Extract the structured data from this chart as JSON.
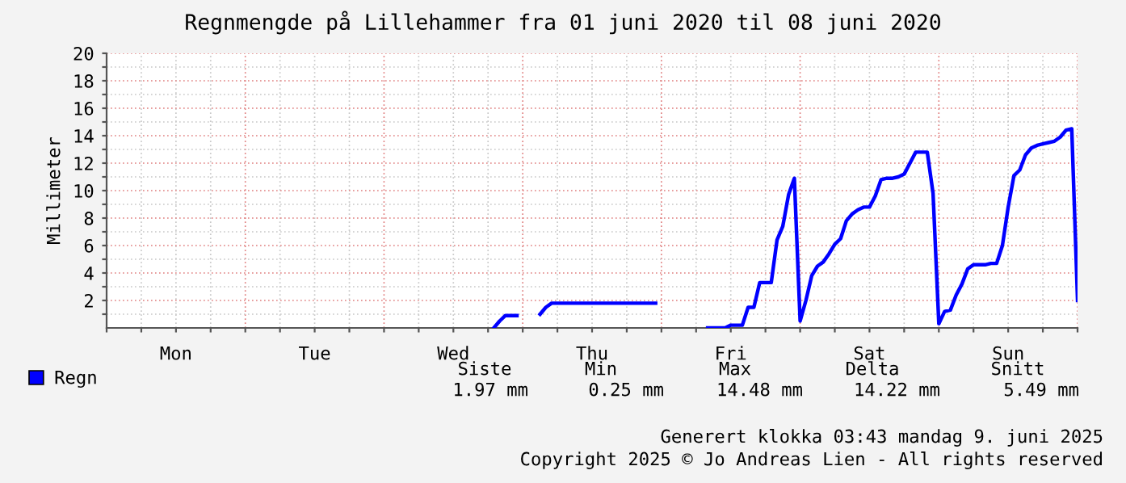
{
  "chart_data": {
    "type": "line",
    "title": "Regnmengde på Lillehammer fra 01 juni 2020 til 08 juni 2020",
    "ylabel": "Millimeter",
    "categories": [
      null,
      null,
      null,
      null,
      null,
      null,
      null,
      null,
      null,
      null,
      null,
      null,
      "Mon",
      null,
      null,
      null,
      null,
      null,
      null,
      null,
      null,
      null,
      null,
      null,
      null,
      null,
      null,
      null,
      null,
      null,
      null,
      null,
      null,
      null,
      null,
      null,
      "Tue",
      null,
      null,
      null,
      null,
      null,
      null,
      null,
      null,
      null,
      null,
      null,
      null,
      null,
      null,
      null,
      null,
      null,
      null,
      null,
      null,
      null,
      null,
      null,
      "Wed",
      null,
      null,
      null,
      null,
      null,
      null,
      null,
      null,
      null,
      null,
      null,
      null,
      null,
      null,
      null,
      null,
      null,
      null,
      null,
      null,
      null,
      null,
      null,
      "Thu",
      null,
      null,
      null,
      null,
      null,
      null,
      null,
      null,
      null,
      null,
      null,
      null,
      null,
      null,
      null,
      null,
      null,
      null,
      null,
      null,
      null,
      null,
      null,
      "Fri",
      null,
      null,
      null,
      null,
      null,
      null,
      null,
      null,
      null,
      null,
      null,
      null,
      null,
      null,
      null,
      null,
      null,
      null,
      null,
      null,
      null,
      null,
      null,
      "Sat",
      null,
      null,
      null,
      null,
      null,
      null,
      null,
      null,
      null,
      null,
      null,
      null,
      null,
      null,
      null,
      null,
      null,
      null,
      null,
      null,
      null,
      null,
      null,
      "Sun",
      null,
      null,
      null,
      null,
      null,
      null,
      null,
      null,
      null,
      null,
      null,
      null
    ],
    "series": [
      {
        "name": "Regn",
        "color": "#0000ff",
        "values": [
          null,
          null,
          null,
          null,
          null,
          null,
          null,
          null,
          null,
          null,
          null,
          null,
          null,
          null,
          null,
          null,
          null,
          null,
          null,
          null,
          null,
          null,
          null,
          null,
          null,
          null,
          null,
          null,
          null,
          null,
          null,
          null,
          null,
          null,
          null,
          null,
          null,
          null,
          null,
          null,
          null,
          null,
          null,
          null,
          null,
          null,
          null,
          null,
          null,
          null,
          null,
          null,
          null,
          null,
          null,
          null,
          null,
          null,
          null,
          null,
          null,
          null,
          null,
          null,
          null,
          null,
          null,
          0,
          0.5,
          0.9,
          0.9,
          0.9,
          null,
          null,
          null,
          1.0,
          1.5,
          1.8,
          1.8,
          1.8,
          1.8,
          1.8,
          1.8,
          1.8,
          1.8,
          1.8,
          1.8,
          1.8,
          1.8,
          1.8,
          1.8,
          1.8,
          1.8,
          1.8,
          1.8,
          1.8,
          null,
          null,
          null,
          null,
          null,
          null,
          null,
          null,
          0,
          0,
          0,
          0,
          0.2,
          0.2,
          0.2,
          1.5,
          1.5,
          3.3,
          3.3,
          3.3,
          6.4,
          7.4,
          9.7,
          10.9,
          0.5,
          2.0,
          3.8,
          4.5,
          4.8,
          5.4,
          6.1,
          6.5,
          7.8,
          8.3,
          8.6,
          8.8,
          8.8,
          9.6,
          10.8,
          10.9,
          10.9,
          11.0,
          11.2,
          12.0,
          12.8,
          12.8,
          12.8,
          9.8,
          0.3,
          1.2,
          1.3,
          2.4,
          3.2,
          4.3,
          4.6,
          4.6,
          4.6,
          4.7,
          4.7,
          6.0,
          8.8,
          11.1,
          11.5,
          12.6,
          13.1,
          13.3,
          13.4,
          13.5,
          13.6,
          13.9,
          14.4,
          14.5,
          2.0
        ]
      }
    ],
    "ylim": [
      0,
      20
    ],
    "yticks": [
      {
        "value": 1,
        "label": null
      },
      2,
      {
        "value": 3,
        "label": null
      },
      4,
      {
        "value": 5,
        "label": null
      },
      6,
      {
        "value": 7,
        "label": null
      },
      8,
      {
        "value": 9,
        "label": null
      },
      10,
      {
        "value": 11,
        "label": null
      },
      12,
      {
        "value": 13,
        "label": null
      },
      14,
      {
        "value": 15,
        "label": null
      },
      16,
      {
        "value": 17,
        "label": null
      },
      18,
      {
        "value": 19,
        "label": null
      },
      20
    ],
    "grid": true,
    "legend": "bottom left",
    "marker": "none",
    "line_style": "solid",
    "annotations": [
      "Siste",
      "Min",
      "Max",
      "Delta",
      "Snitt",
      "1.97 mm",
      "0.25 mm",
      "14.48 mm",
      "14.22 mm",
      "5.49 mm",
      "Generert klokka 03:43 mandag 9. juni 2025",
      "Copyright 2025 © Jo Andreas Lien - All rights reserved"
    ]
  }
}
